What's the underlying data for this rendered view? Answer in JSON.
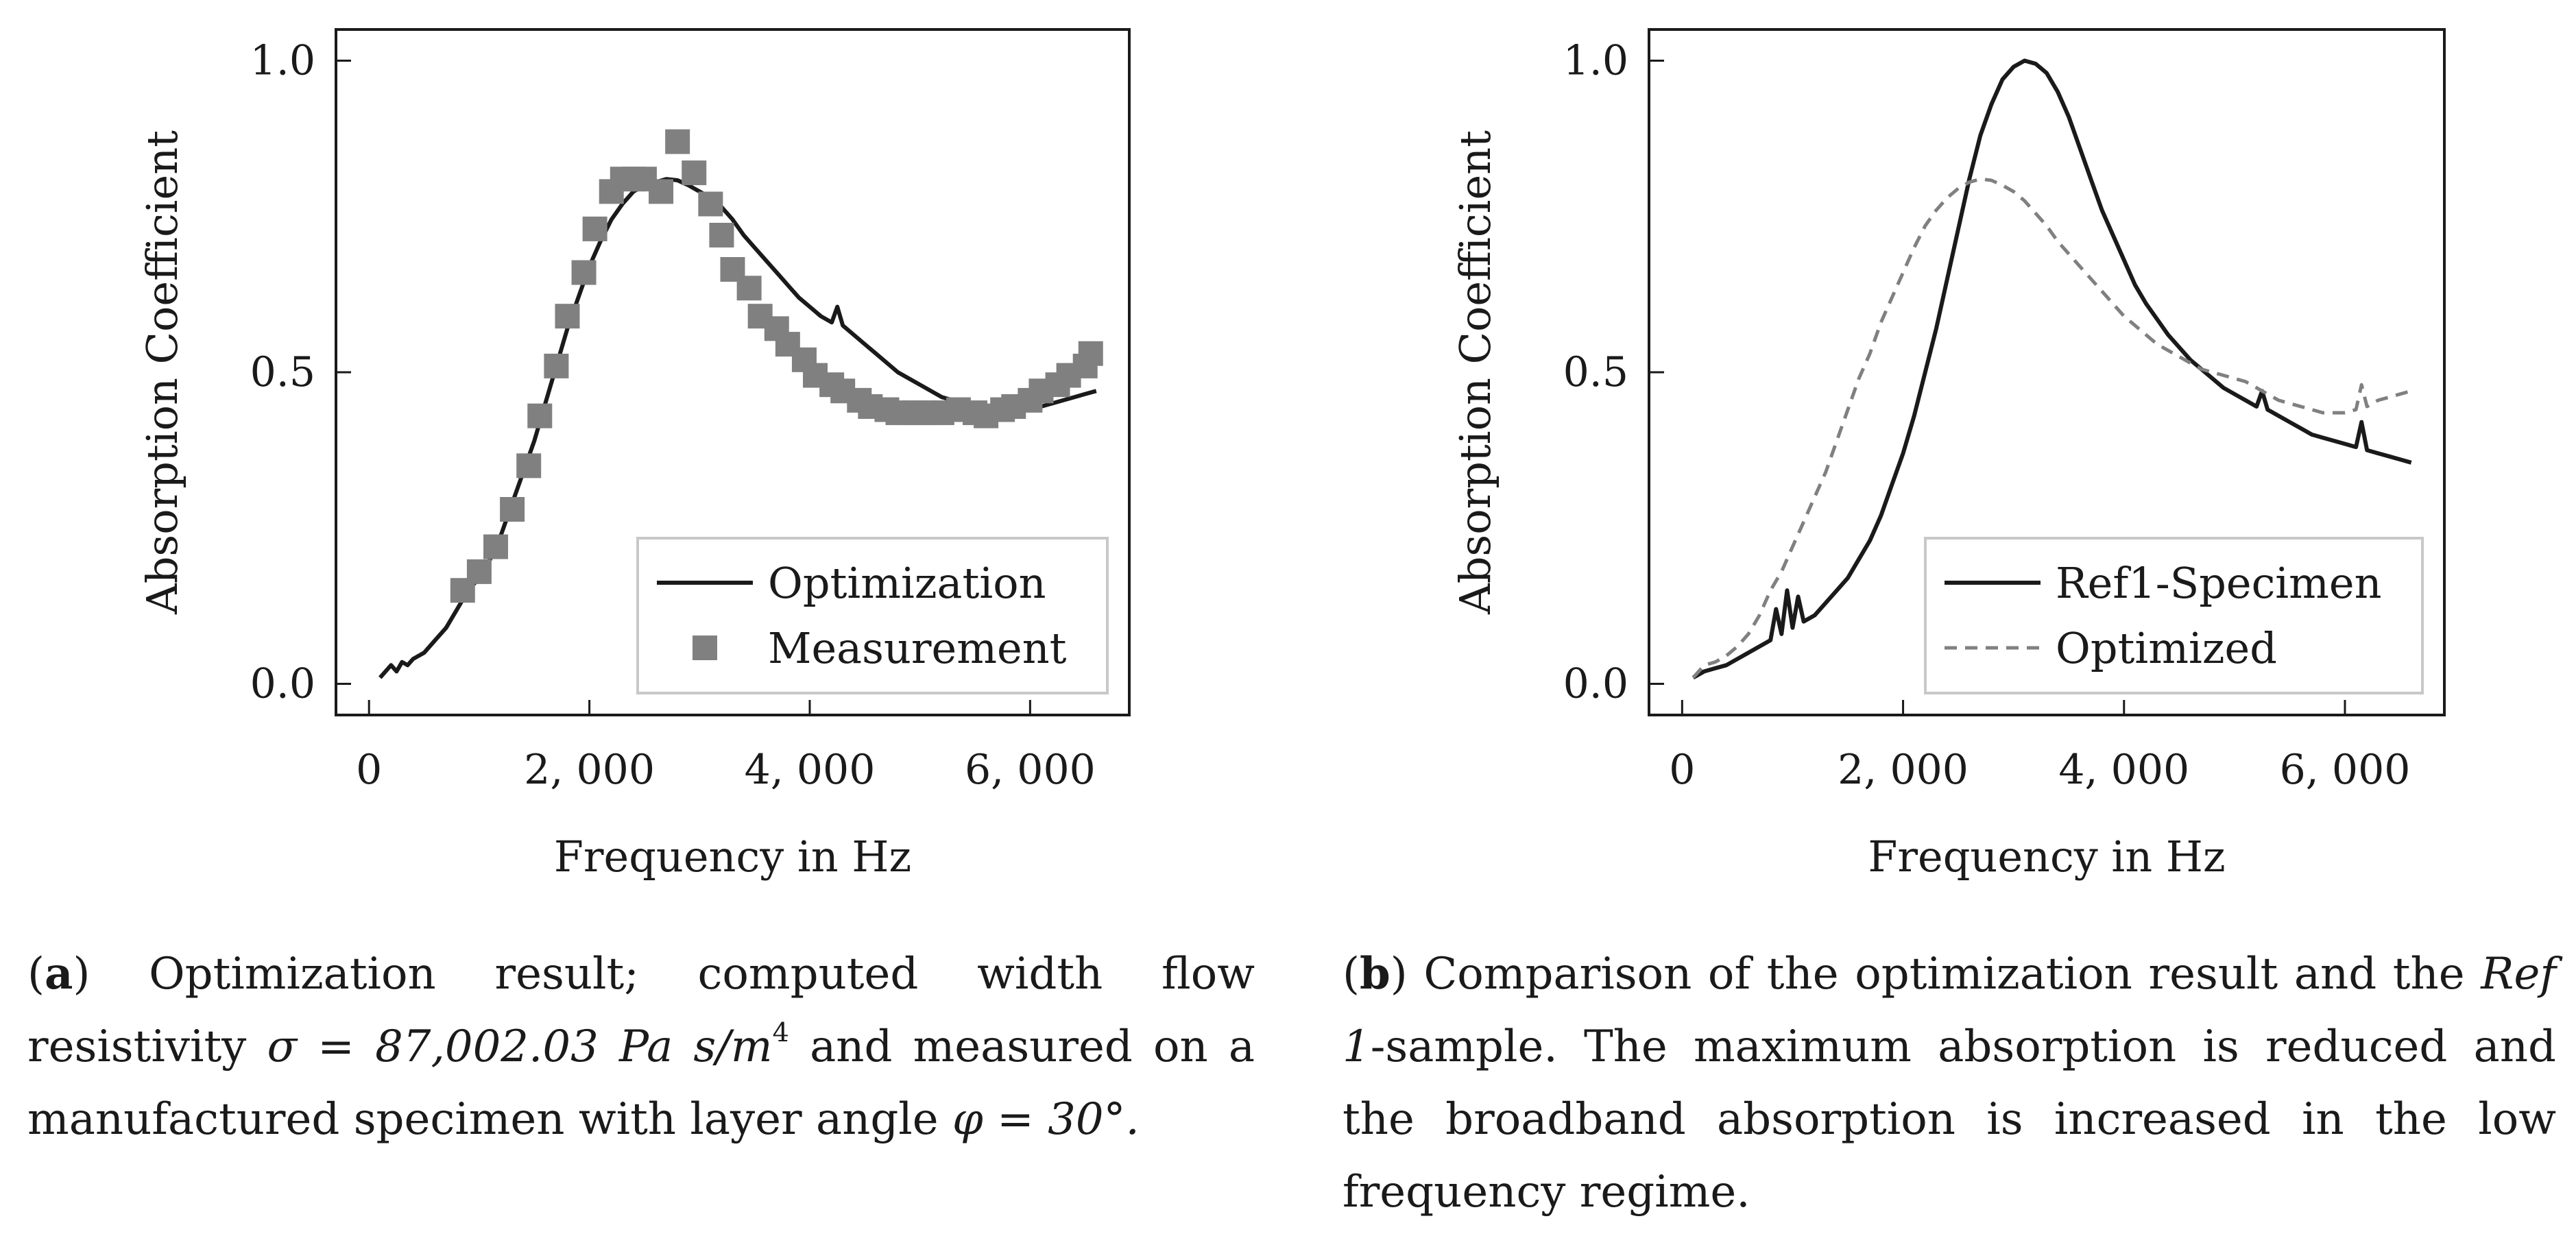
{
  "chart_data": [
    {
      "type": "line",
      "panel": "a",
      "xlabel": "Frequency in Hz",
      "ylabel": "Absorption Coefficient",
      "xlim": [
        -300,
        6900
      ],
      "ylim": [
        -0.05,
        1.05
      ],
      "xticks": [
        0,
        2000,
        4000,
        6000
      ],
      "xtick_labels": [
        "0",
        "2, 000",
        "4, 000",
        "6, 000"
      ],
      "yticks": [
        0.0,
        0.5,
        1.0
      ],
      "ytick_labels": [
        "0.0",
        "0.5",
        "1.0"
      ],
      "grid": false,
      "legend_position": "bottom-right",
      "series": [
        {
          "name": "Optimization",
          "style": "solid",
          "color": "#1a1a1a",
          "marker": "none",
          "x": [
            100,
            200,
            250,
            300,
            350,
            400,
            500,
            600,
            700,
            800,
            900,
            1000,
            1100,
            1200,
            1300,
            1400,
            1500,
            1600,
            1700,
            1800,
            1900,
            2000,
            2100,
            2200,
            2300,
            2400,
            2500,
            2600,
            2700,
            2800,
            2900,
            3000,
            3100,
            3200,
            3300,
            3400,
            3500,
            3600,
            3700,
            3800,
            3900,
            4000,
            4100,
            4200,
            4250,
            4300,
            4400,
            4500,
            4600,
            4700,
            4800,
            4900,
            5000,
            5100,
            5200,
            5300,
            5400,
            5500,
            5600,
            5700,
            5800,
            5900,
            6000,
            6100,
            6200,
            6300,
            6400,
            6500,
            6600
          ],
          "y": [
            0.01,
            0.03,
            0.02,
            0.035,
            0.03,
            0.04,
            0.05,
            0.07,
            0.09,
            0.12,
            0.15,
            0.17,
            0.2,
            0.24,
            0.29,
            0.34,
            0.39,
            0.45,
            0.51,
            0.57,
            0.62,
            0.67,
            0.71,
            0.745,
            0.77,
            0.79,
            0.8,
            0.805,
            0.81,
            0.808,
            0.8,
            0.79,
            0.78,
            0.765,
            0.745,
            0.72,
            0.7,
            0.68,
            0.66,
            0.64,
            0.62,
            0.605,
            0.59,
            0.58,
            0.605,
            0.575,
            0.56,
            0.545,
            0.53,
            0.515,
            0.5,
            0.49,
            0.48,
            0.47,
            0.46,
            0.455,
            0.45,
            0.44,
            0.437,
            0.435,
            0.435,
            0.437,
            0.44,
            0.445,
            0.45,
            0.455,
            0.46,
            0.465,
            0.47
          ]
        },
        {
          "name": "Measurement",
          "style": "none",
          "color": "#808080",
          "marker": "square",
          "x": [
            850,
            1000,
            1150,
            1300,
            1450,
            1550,
            1700,
            1800,
            1950,
            2050,
            2200,
            2300,
            2400,
            2500,
            2650,
            2800,
            2950,
            3100,
            3200,
            3300,
            3450,
            3550,
            3700,
            3800,
            3950,
            4050,
            4200,
            4300,
            4450,
            4550,
            4700,
            4800,
            4950,
            5050,
            5200,
            5350,
            5500,
            5600,
            5750,
            5850,
            6000,
            6100,
            6250,
            6350,
            6500,
            6550
          ],
          "y": [
            0.15,
            0.18,
            0.22,
            0.28,
            0.35,
            0.43,
            0.51,
            0.59,
            0.66,
            0.73,
            0.79,
            0.81,
            0.81,
            0.81,
            0.79,
            0.87,
            0.82,
            0.77,
            0.72,
            0.665,
            0.635,
            0.59,
            0.57,
            0.545,
            0.52,
            0.495,
            0.48,
            0.47,
            0.455,
            0.445,
            0.44,
            0.435,
            0.435,
            0.435,
            0.435,
            0.44,
            0.435,
            0.43,
            0.44,
            0.445,
            0.455,
            0.47,
            0.48,
            0.495,
            0.51,
            0.53
          ]
        }
      ]
    },
    {
      "type": "line",
      "panel": "b",
      "xlabel": "Frequency in Hz",
      "ylabel": "Absorption Coefficient",
      "xlim": [
        -300,
        6900
      ],
      "ylim": [
        -0.05,
        1.05
      ],
      "xticks": [
        0,
        2000,
        4000,
        6000
      ],
      "xtick_labels": [
        "0",
        "2, 000",
        "4, 000",
        "6, 000"
      ],
      "yticks": [
        0.0,
        0.5,
        1.0
      ],
      "ytick_labels": [
        "0.0",
        "0.5",
        "1.0"
      ],
      "grid": false,
      "legend_position": "bottom-right",
      "series": [
        {
          "name": "Ref1-Specimen",
          "style": "solid",
          "color": "#1a1a1a",
          "marker": "none",
          "x": [
            100,
            200,
            300,
            400,
            500,
            600,
            700,
            800,
            850,
            900,
            950,
            1000,
            1050,
            1100,
            1200,
            1300,
            1400,
            1500,
            1600,
            1700,
            1800,
            1900,
            2000,
            2100,
            2200,
            2300,
            2400,
            2500,
            2600,
            2700,
            2800,
            2900,
            3000,
            3100,
            3200,
            3300,
            3400,
            3500,
            3600,
            3700,
            3800,
            3900,
            4000,
            4100,
            4200,
            4300,
            4400,
            4500,
            4600,
            4700,
            4800,
            4900,
            5000,
            5100,
            5200,
            5250,
            5300,
            5400,
            5500,
            5600,
            5700,
            5800,
            5900,
            6000,
            6100,
            6150,
            6200,
            6300,
            6400,
            6500,
            6600
          ],
          "y": [
            0.01,
            0.02,
            0.025,
            0.03,
            0.04,
            0.05,
            0.06,
            0.07,
            0.12,
            0.08,
            0.15,
            0.09,
            0.14,
            0.1,
            0.11,
            0.13,
            0.15,
            0.17,
            0.2,
            0.23,
            0.27,
            0.32,
            0.37,
            0.43,
            0.5,
            0.57,
            0.65,
            0.73,
            0.81,
            0.88,
            0.93,
            0.97,
            0.99,
            1.0,
            0.995,
            0.98,
            0.95,
            0.91,
            0.86,
            0.81,
            0.76,
            0.72,
            0.68,
            0.64,
            0.61,
            0.585,
            0.56,
            0.54,
            0.52,
            0.505,
            0.49,
            0.475,
            0.465,
            0.455,
            0.445,
            0.47,
            0.44,
            0.43,
            0.42,
            0.41,
            0.4,
            0.395,
            0.39,
            0.385,
            0.38,
            0.42,
            0.375,
            0.37,
            0.365,
            0.36,
            0.355
          ]
        },
        {
          "name": "Optimized",
          "style": "dashed",
          "color": "#808080",
          "marker": "none",
          "x": [
            100,
            200,
            300,
            400,
            500,
            600,
            700,
            800,
            900,
            1000,
            1100,
            1200,
            1300,
            1400,
            1500,
            1600,
            1700,
            1800,
            1900,
            2000,
            2100,
            2200,
            2300,
            2400,
            2500,
            2600,
            2700,
            2800,
            2900,
            3000,
            3100,
            3200,
            3300,
            3400,
            3500,
            3600,
            3700,
            3800,
            3900,
            4000,
            4100,
            4200,
            4300,
            4400,
            4500,
            4600,
            4700,
            4800,
            4900,
            5000,
            5100,
            5200,
            5300,
            5400,
            5500,
            5600,
            5700,
            5800,
            5900,
            6000,
            6100,
            6150,
            6200,
            6300,
            6400,
            6500,
            6600
          ],
          "y": [
            0.01,
            0.03,
            0.035,
            0.045,
            0.06,
            0.08,
            0.11,
            0.15,
            0.18,
            0.22,
            0.26,
            0.3,
            0.34,
            0.39,
            0.44,
            0.49,
            0.53,
            0.58,
            0.62,
            0.66,
            0.7,
            0.735,
            0.76,
            0.78,
            0.795,
            0.805,
            0.81,
            0.808,
            0.8,
            0.79,
            0.775,
            0.755,
            0.735,
            0.71,
            0.69,
            0.67,
            0.65,
            0.63,
            0.61,
            0.59,
            0.575,
            0.56,
            0.545,
            0.535,
            0.525,
            0.515,
            0.505,
            0.5,
            0.495,
            0.49,
            0.485,
            0.475,
            0.465,
            0.455,
            0.45,
            0.445,
            0.44,
            0.435,
            0.435,
            0.435,
            0.44,
            0.48,
            0.445,
            0.455,
            0.46,
            0.465,
            0.47
          ]
        }
      ]
    }
  ],
  "captions": {
    "a": {
      "label": "a",
      "text1": " Optimization result; computed width flow resistivity ",
      "sigma": "σ = 87,002.03 Pa s/m",
      "sup": "4",
      "text2": " and measured on a manufactured specimen with layer angle ",
      "phi": "φ = 30°."
    },
    "b": {
      "label": "b",
      "text1": " Comparison of the optimization result and the ",
      "ref": "Ref 1",
      "text2": "-sample. The maximum absorption is reduced and the broadband absorption is increased in the low frequency regime."
    }
  }
}
